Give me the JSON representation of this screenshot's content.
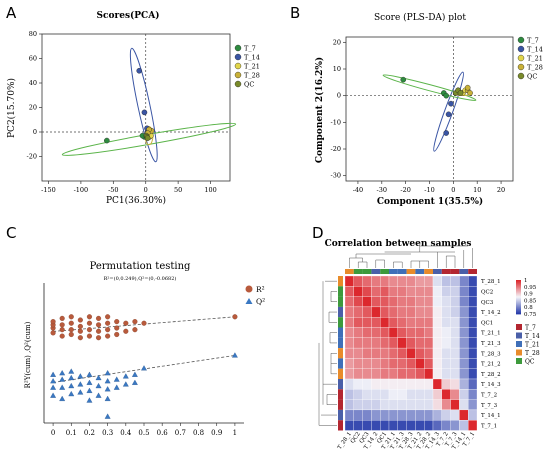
{
  "panels": {
    "A": {
      "letter": "A",
      "chart_data": {
        "type": "scatter",
        "title": "Scores(PCA)",
        "xlabel": "PC1(36.30%)",
        "ylabel": "PC2(15.70%)",
        "xlim": [
          -160,
          130
        ],
        "ylim": [
          -40,
          80
        ],
        "xticks": [
          "-150",
          "-100",
          "-50",
          "0",
          "50",
          "100"
        ],
        "yticks": [
          "-20",
          "0",
          "20",
          "40",
          "60",
          "80"
        ],
        "legend": [
          "T_7",
          "T_14",
          "T_21",
          "T_28",
          "QC"
        ],
        "colors": {
          "T_7": "#2e8b3f",
          "T_14": "#3a55a4",
          "T_21": "#e2d64a",
          "T_28": "#c9b138",
          "QC": "#7a8b2a"
        },
        "series": [
          {
            "name": "T_7",
            "points": [
              [
                -60,
                -7
              ],
              [
                -2,
                -4
              ],
              [
                -5,
                -3
              ]
            ]
          },
          {
            "name": "T_14",
            "points": [
              [
                -10,
                50
              ],
              [
                -2,
                16
              ],
              [
                2,
                3
              ],
              [
                3,
                0
              ]
            ]
          },
          {
            "name": "T_21",
            "points": [
              [
                4,
                -2
              ],
              [
                6,
                -4
              ],
              [
                8,
                -3
              ]
            ]
          },
          {
            "name": "T_28",
            "points": [
              [
                9,
                1
              ],
              [
                5,
                2
              ],
              [
                3,
                -1
              ]
            ]
          },
          {
            "name": "QC",
            "points": [
              [
                1,
                -3
              ],
              [
                2,
                -4
              ],
              [
                3,
                -5
              ]
            ]
          }
        ]
      }
    },
    "B": {
      "letter": "B",
      "chart_data": {
        "type": "scatter",
        "title": "Score (PLS-DA) plot",
        "xlabel": "Component 1(35.5%)",
        "ylabel": "Component 2(16.2%)",
        "xlim": [
          -45,
          25
        ],
        "ylim": [
          -32,
          22
        ],
        "xticks": [
          "-40",
          "-30",
          "-20",
          "-10",
          "0",
          "10",
          "20"
        ],
        "yticks": [
          "-30",
          "-20",
          "-10",
          "0",
          "10",
          "20"
        ],
        "legend": [
          "T_7",
          "T_14",
          "T_21",
          "T_28",
          "QC"
        ],
        "colors": {
          "T_7": "#2e8b3f",
          "T_14": "#3a55a4",
          "T_21": "#e2d64a",
          "T_28": "#c9b138",
          "QC": "#7a8b2a"
        },
        "series": [
          {
            "name": "T_7",
            "points": [
              [
                -21,
                6
              ],
              [
                -4,
                1
              ],
              [
                -3,
                0
              ]
            ]
          },
          {
            "name": "T_14",
            "points": [
              [
                -2,
                -7
              ],
              [
                -3,
                -14
              ],
              [
                -1,
                -3
              ]
            ]
          },
          {
            "name": "T_21",
            "points": [
              [
                2,
                2
              ],
              [
                4,
                1
              ],
              [
                5,
                2
              ]
            ]
          },
          {
            "name": "T_28",
            "points": [
              [
                6,
                2
              ],
              [
                7,
                1
              ],
              [
                6,
                3
              ]
            ]
          },
          {
            "name": "QC",
            "points": [
              [
                1,
                1
              ],
              [
                2,
                2
              ],
              [
                3,
                1
              ]
            ]
          }
        ]
      }
    },
    "C": {
      "letter": "C",
      "chart_data": {
        "type": "scatter",
        "title": "Permutation testing",
        "subtitle": "R²=(0,0.249),Q²=(0,-0.0682)",
        "xlabel": "",
        "ylabel": "R²Y(cum) ,Q²(cum)",
        "xlim": [
          -0.05,
          1.05
        ],
        "ylim": [
          -0.32,
          0.55
        ],
        "xticks": [
          "0",
          "0.1",
          "0.2",
          "0.3",
          "0.4",
          "0.5",
          "0.6",
          "0.7",
          "0.8",
          "0.9",
          "1"
        ],
        "legend": [
          "R²",
          "Q²"
        ],
        "colors": {
          "R2": "#b85a3c",
          "Q2": "#3a78c2"
        },
        "r2_line": [
          [
            0,
            0.249
          ],
          [
            1,
            0.34
          ]
        ],
        "q2_line": [
          [
            0,
            -0.0682
          ],
          [
            1,
            0.1
          ]
        ],
        "r2": {
          "x": [
            0.0,
            0.0,
            0.0,
            0.0,
            0.05,
            0.05,
            0.05,
            0.05,
            0.1,
            0.1,
            0.1,
            0.1,
            0.15,
            0.15,
            0.15,
            0.15,
            0.2,
            0.2,
            0.2,
            0.2,
            0.25,
            0.25,
            0.25,
            0.25,
            0.3,
            0.3,
            0.3,
            0.3,
            0.35,
            0.35,
            0.35,
            0.4,
            0.4,
            0.45,
            0.45,
            0.5,
            1.0
          ],
          "y": [
            0.24,
            0.27,
            0.29,
            0.31,
            0.22,
            0.26,
            0.29,
            0.33,
            0.23,
            0.26,
            0.3,
            0.34,
            0.21,
            0.25,
            0.28,
            0.32,
            0.22,
            0.26,
            0.3,
            0.34,
            0.21,
            0.25,
            0.29,
            0.33,
            0.22,
            0.26,
            0.3,
            0.34,
            0.23,
            0.27,
            0.31,
            0.25,
            0.3,
            0.26,
            0.31,
            0.3,
            0.34
          ]
        },
        "q2": {
          "x": [
            0.0,
            0.0,
            0.0,
            0.0,
            0.05,
            0.05,
            0.05,
            0.05,
            0.1,
            0.1,
            0.1,
            0.1,
            0.15,
            0.15,
            0.15,
            0.2,
            0.2,
            0.2,
            0.2,
            0.25,
            0.25,
            0.25,
            0.3,
            0.3,
            0.3,
            0.3,
            0.3,
            0.35,
            0.35,
            0.4,
            0.4,
            0.45,
            0.45,
            0.5,
            1.0
          ],
          "y": [
            -0.02,
            -0.06,
            -0.1,
            -0.15,
            -0.01,
            -0.05,
            -0.1,
            -0.17,
            0.0,
            -0.04,
            -0.09,
            -0.14,
            -0.03,
            -0.08,
            -0.13,
            -0.02,
            -0.07,
            -0.12,
            -0.18,
            -0.04,
            -0.09,
            -0.15,
            -0.01,
            -0.06,
            -0.11,
            -0.17,
            -0.28,
            -0.05,
            -0.1,
            -0.03,
            -0.08,
            -0.02,
            -0.07,
            0.02,
            0.1
          ]
        }
      }
    },
    "D": {
      "letter": "D",
      "chart_data": {
        "type": "heatmap",
        "title": "Correlation between samples",
        "rows": [
          "T_28_1",
          "QC2",
          "QC3",
          "T_14_2",
          "QC1",
          "T_21_1",
          "T_21_3",
          "T_28_3",
          "T_21_2",
          "T_28_2",
          "T_14_3",
          "T_7_2",
          "T_7_3",
          "T_14_1",
          "T_7_1"
        ],
        "cols": [
          "T_28_1",
          "QC2",
          "QC3",
          "T_14_2",
          "QC1",
          "T_21_1",
          "T_21_3",
          "T_28_3",
          "T_21_2",
          "T_28_2",
          "T_14_3",
          "T_7_2",
          "T_7_3",
          "T_14_1",
          "T_7_1"
        ],
        "scale_labels": [
          "1",
          "0.95",
          "0.9",
          "0.85",
          "0.8",
          "0.75"
        ],
        "group_legend": [
          "T_7",
          "T_14",
          "T_21",
          "T_28",
          "QC"
        ],
        "group_colors": {
          "T_7": "#b32630",
          "T_14": "#4a5fa8",
          "T_21": "#3f6fb8",
          "T_28": "#e88b2a",
          "QC": "#3d9a3c"
        },
        "values": [
          [
            1.0,
            0.97,
            0.96,
            0.95,
            0.95,
            0.94,
            0.94,
            0.94,
            0.93,
            0.93,
            0.86,
            0.84,
            0.84,
            0.8,
            0.76
          ],
          [
            0.97,
            1.0,
            0.98,
            0.96,
            0.97,
            0.95,
            0.95,
            0.94,
            0.94,
            0.94,
            0.87,
            0.85,
            0.85,
            0.8,
            0.76
          ],
          [
            0.96,
            0.98,
            1.0,
            0.97,
            0.97,
            0.96,
            0.95,
            0.95,
            0.94,
            0.94,
            0.87,
            0.86,
            0.85,
            0.8,
            0.76
          ],
          [
            0.95,
            0.96,
            0.97,
            1.0,
            0.97,
            0.96,
            0.95,
            0.95,
            0.94,
            0.94,
            0.88,
            0.86,
            0.85,
            0.81,
            0.76
          ],
          [
            0.95,
            0.97,
            0.97,
            0.97,
            1.0,
            0.97,
            0.96,
            0.95,
            0.95,
            0.95,
            0.88,
            0.86,
            0.86,
            0.81,
            0.76
          ],
          [
            0.94,
            0.95,
            0.96,
            0.96,
            0.97,
            1.0,
            0.97,
            0.96,
            0.96,
            0.95,
            0.88,
            0.87,
            0.86,
            0.81,
            0.76
          ],
          [
            0.94,
            0.95,
            0.95,
            0.95,
            0.96,
            0.97,
            1.0,
            0.97,
            0.96,
            0.96,
            0.88,
            0.87,
            0.86,
            0.81,
            0.76
          ],
          [
            0.94,
            0.94,
            0.95,
            0.95,
            0.95,
            0.96,
            0.97,
            1.0,
            0.97,
            0.96,
            0.88,
            0.86,
            0.86,
            0.81,
            0.76
          ],
          [
            0.93,
            0.94,
            0.94,
            0.94,
            0.95,
            0.96,
            0.96,
            0.97,
            1.0,
            0.97,
            0.88,
            0.86,
            0.86,
            0.81,
            0.76
          ],
          [
            0.93,
            0.94,
            0.94,
            0.94,
            0.95,
            0.95,
            0.96,
            0.96,
            0.97,
            1.0,
            0.88,
            0.86,
            0.86,
            0.81,
            0.76
          ],
          [
            0.86,
            0.87,
            0.87,
            0.88,
            0.88,
            0.88,
            0.88,
            0.88,
            0.88,
            0.88,
            1.0,
            0.9,
            0.89,
            0.83,
            0.78
          ],
          [
            0.84,
            0.85,
            0.86,
            0.86,
            0.86,
            0.87,
            0.87,
            0.86,
            0.86,
            0.86,
            0.9,
            1.0,
            0.94,
            0.85,
            0.8
          ],
          [
            0.84,
            0.85,
            0.85,
            0.85,
            0.86,
            0.86,
            0.86,
            0.86,
            0.86,
            0.86,
            0.89,
            0.94,
            1.0,
            0.86,
            0.81
          ],
          [
            0.8,
            0.8,
            0.8,
            0.81,
            0.81,
            0.81,
            0.81,
            0.81,
            0.81,
            0.81,
            0.83,
            0.85,
            0.86,
            1.0,
            0.84
          ],
          [
            0.76,
            0.76,
            0.76,
            0.76,
            0.76,
            0.76,
            0.76,
            0.76,
            0.76,
            0.76,
            0.78,
            0.8,
            0.81,
            0.84,
            1.0
          ]
        ]
      }
    }
  }
}
